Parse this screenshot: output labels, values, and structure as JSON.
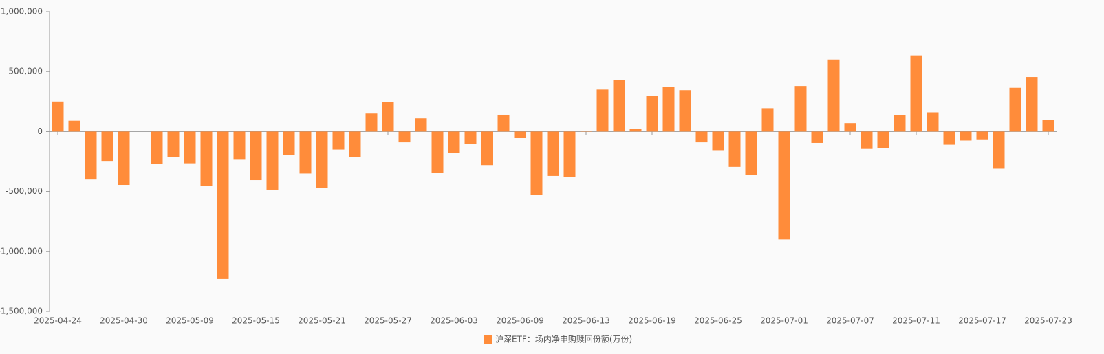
{
  "chart_data": {
    "type": "bar",
    "categories": [
      "2025-04-24",
      null,
      null,
      null,
      "2025-04-30",
      null,
      null,
      null,
      "2025-05-09",
      null,
      null,
      null,
      "2025-05-15",
      null,
      null,
      null,
      "2025-05-21",
      null,
      null,
      null,
      "2025-05-27",
      null,
      null,
      null,
      "2025-06-03",
      null,
      null,
      null,
      "2025-06-09",
      null,
      null,
      null,
      "2025-06-13",
      null,
      null,
      null,
      "2025-06-19",
      null,
      null,
      null,
      "2025-06-25",
      null,
      null,
      null,
      "2025-07-01",
      null,
      null,
      null,
      "2025-07-07",
      null,
      null,
      null,
      "2025-07-11",
      null,
      null,
      null,
      "2025-07-17",
      null,
      null,
      null,
      "2025-07-23"
    ],
    "series": [
      {
        "name": "沪深ETF：场内净申购赎回份额(万份)",
        "color": "#ff8c3a",
        "values": [
          250000,
          90000,
          -400000,
          -245000,
          -445000,
          null,
          -270000,
          -210000,
          -265000,
          -455000,
          -1230000,
          -235000,
          -405000,
          -485000,
          -195000,
          -350000,
          -470000,
          -150000,
          -210000,
          150000,
          245000,
          -90000,
          110000,
          -345000,
          -180000,
          -105000,
          -280000,
          140000,
          -55000,
          -530000,
          -370000,
          -380000,
          5000,
          350000,
          430000,
          20000,
          300000,
          370000,
          345000,
          -90000,
          -155000,
          -295000,
          -360000,
          195000,
          -900000,
          380000,
          -95000,
          600000,
          70000,
          -145000,
          -140000,
          135000,
          635000,
          160000,
          -110000,
          -75000,
          -65000,
          -310000,
          365000,
          455000,
          95000
        ]
      }
    ],
    "ylim": [
      -1500000,
      1000000
    ],
    "yticks": [
      {
        "value": -1500000,
        "label": "-1,500,000"
      },
      {
        "value": -1000000,
        "label": "-1,000,000"
      },
      {
        "value": -500000,
        "label": "-500,000"
      },
      0,
      {
        "value": 500000,
        "label": "500,000"
      },
      {
        "value": 1000000,
        "label": "1,000,000"
      }
    ],
    "legend": "bottom"
  }
}
